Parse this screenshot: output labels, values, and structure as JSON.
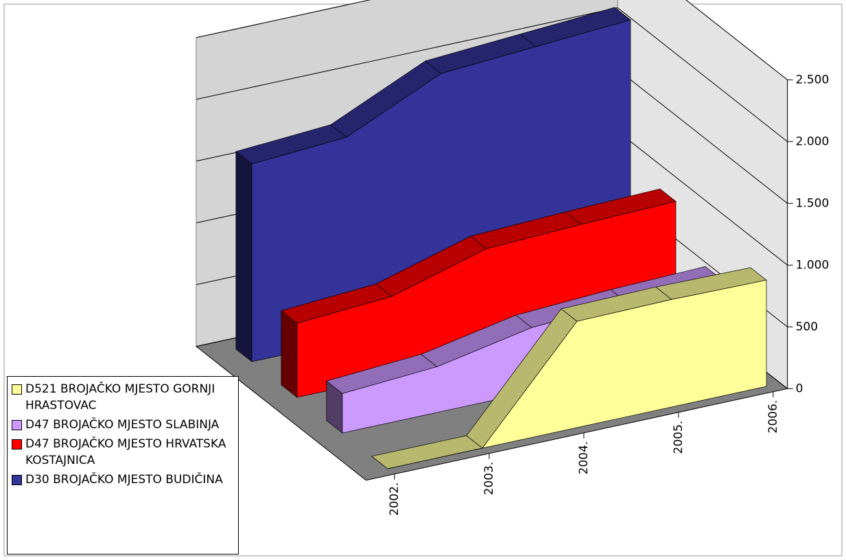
{
  "chart_data": {
    "type": "area3d",
    "categories": [
      "2002.",
      "2003.",
      "2004.",
      "2005.",
      "2006."
    ],
    "series": [
      {
        "name": "D521 BROJAČKO MJESTO GORNJI HRASTOVAC",
        "color": "#ffff99",
        "values": [
          0,
          0,
          860,
          870,
          860
        ]
      },
      {
        "name": "D47 BROJAČKO MJESTO SLABINJA",
        "color": "#cc99ff",
        "values": [
          320,
          370,
          520,
          560,
          580
        ]
      },
      {
        "name": "D47 BROJAČKO MJESTO HRVATSKA KOSTAJNICA",
        "color": "#ff0000",
        "values": [
          600,
          650,
          870,
          900,
          920
        ]
      },
      {
        "name": "D30 BROJAČKO MJESTO BUDIČINA",
        "color": "#333399",
        "values": [
          1600,
          1650,
          2000,
          2050,
          2100
        ]
      }
    ],
    "ylim": [
      0,
      2500
    ],
    "yticks": [
      0,
      500,
      {
        "value": 1000,
        "label": "1.000"
      },
      {
        "value": 1500,
        "label": "1.500"
      },
      {
        "value": 2000,
        "label": "2.000"
      },
      {
        "value": 2500,
        "label": "2.500"
      }
    ],
    "grid": true
  }
}
